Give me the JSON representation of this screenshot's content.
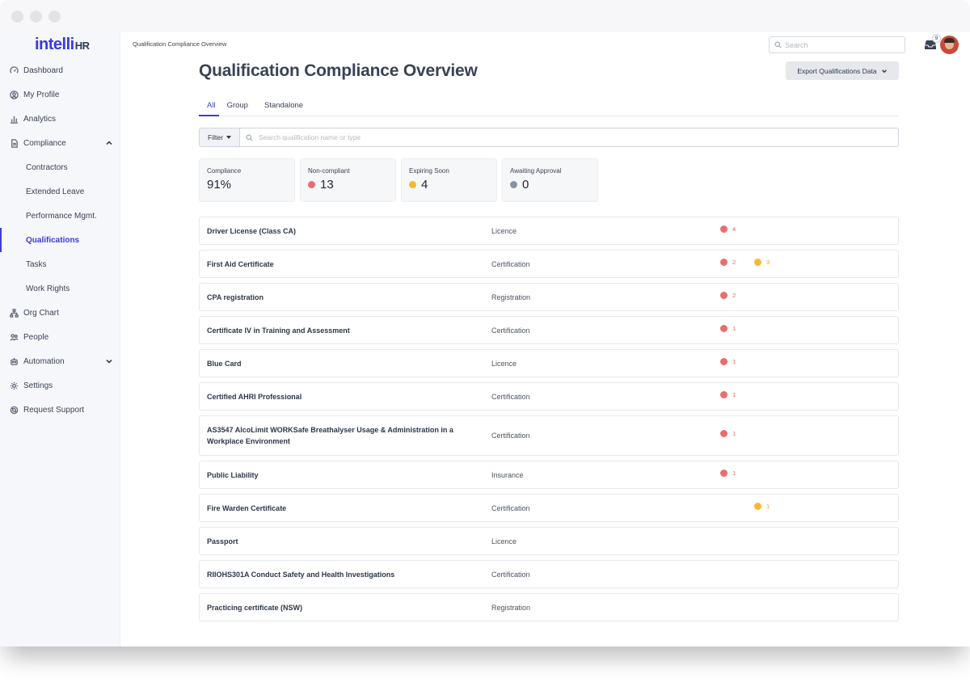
{
  "window": {
    "controls": [
      "close",
      "minimize",
      "maximize"
    ]
  },
  "logo": {
    "text": "intelli",
    "suffix": "HR"
  },
  "sidebar": {
    "items": [
      {
        "label": "Dashboard",
        "icon": "gauge-icon"
      },
      {
        "label": "My Profile",
        "icon": "user-circle-icon"
      },
      {
        "label": "Analytics",
        "icon": "bar-chart-icon"
      },
      {
        "label": "Compliance",
        "icon": "document-icon",
        "expanded": true
      },
      {
        "label": "Contractors",
        "sub": true
      },
      {
        "label": "Extended Leave",
        "sub": true
      },
      {
        "label": "Performance Mgmt.",
        "sub": true
      },
      {
        "label": "Qualifications",
        "sub": true,
        "active": true
      },
      {
        "label": "Tasks",
        "sub": true
      },
      {
        "label": "Work Rights",
        "sub": true
      },
      {
        "label": "Org Chart",
        "icon": "org-chart-icon"
      },
      {
        "label": "People",
        "icon": "people-icon"
      },
      {
        "label": "Automation",
        "icon": "robot-icon",
        "expanded": false
      },
      {
        "label": "Settings",
        "icon": "gear-icon"
      },
      {
        "label": "Request Support",
        "icon": "support-icon"
      }
    ]
  },
  "header": {
    "breadcrumb": "Qualification Compliance Overview",
    "search_placeholder": "Search",
    "inbox_count": "9"
  },
  "page": {
    "title": "Qualification Compliance Overview",
    "export_label": "Export Qualifications Data",
    "tabs": [
      {
        "label": "All",
        "active": true
      },
      {
        "label": "Group"
      },
      {
        "label": "Standalone"
      }
    ],
    "filter_label": "Filter",
    "filter_placeholder": "Search qualification name or type"
  },
  "stats": [
    {
      "label": "Compliance",
      "value": "91%",
      "dot_color": ""
    },
    {
      "label": "Non-compliant",
      "value": "13",
      "dot_color": "#ea6d6d"
    },
    {
      "label": "Expiring Soon",
      "value": "4",
      "dot_color": "#f5b930"
    },
    {
      "label": "Awaiting Approval",
      "value": "0",
      "dot_color": "#8a93a3"
    }
  ],
  "colors": {
    "accent": "#3b3be0",
    "non_compliant": "#ea6d6d",
    "expiring": "#f5b930",
    "awaiting": "#8a93a3"
  },
  "qualifications": [
    {
      "name": "Driver License (Class CA)",
      "type": "Licence",
      "non_compliant": "4",
      "expiring": ""
    },
    {
      "name": "First Aid Certificate",
      "type": "Certification",
      "non_compliant": "2",
      "expiring": "3"
    },
    {
      "name": "CPA registration",
      "type": "Registration",
      "non_compliant": "2",
      "expiring": ""
    },
    {
      "name": "Certificate IV in Training and Assessment",
      "type": "Certification",
      "non_compliant": "1",
      "expiring": ""
    },
    {
      "name": "Blue Card",
      "type": "Licence",
      "non_compliant": "1",
      "expiring": ""
    },
    {
      "name": "Certified AHRI Professional",
      "type": "Certification",
      "non_compliant": "1",
      "expiring": ""
    },
    {
      "name": "AS3547 AlcoLimit WORKSafe Breathalyser Usage & Administration in a Workplace Environment",
      "type": "Certification",
      "non_compliant": "1",
      "expiring": "",
      "tall": true
    },
    {
      "name": "Public Liability",
      "type": "Insurance",
      "non_compliant": "1",
      "expiring": ""
    },
    {
      "name": "Fire Warden Certificate",
      "type": "Certification",
      "non_compliant": "",
      "expiring": "1"
    },
    {
      "name": "Passport",
      "type": "Licence",
      "non_compliant": "",
      "expiring": ""
    },
    {
      "name": "RIIOHS301A Conduct Safety and Health Investigations",
      "type": "Certification",
      "non_compliant": "",
      "expiring": ""
    },
    {
      "name": "Practicing certificate (NSW)",
      "type": "Registration",
      "non_compliant": "",
      "expiring": ""
    }
  ]
}
